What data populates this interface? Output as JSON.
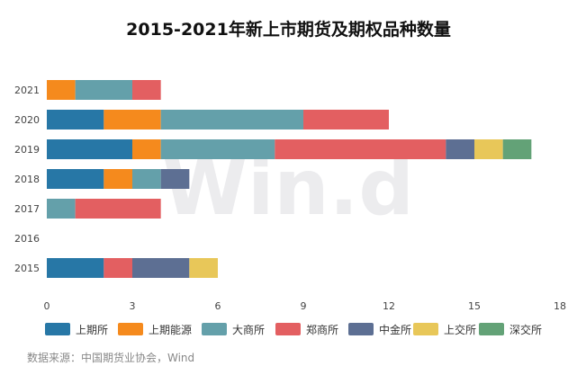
{
  "chart_data": {
    "type": "bar",
    "orientation": "horizontal",
    "stacked": true,
    "title": "2015-2021年新上市期货及期权品种数量",
    "categories": [
      "2021",
      "2020",
      "2019",
      "2018",
      "2017",
      "2016",
      "2015"
    ],
    "x_ticks": [
      "0",
      "3",
      "6",
      "9",
      "12",
      "15",
      "18"
    ],
    "xlim": [
      0,
      18
    ],
    "grid": false,
    "legend_position": "bottom",
    "series": [
      {
        "name": "上期所",
        "color": "#2777a6",
        "values": [
          0,
          2,
          3,
          2,
          0,
          0,
          2
        ]
      },
      {
        "name": "上期能源",
        "color": "#f58a1d",
        "values": [
          1,
          2,
          1,
          1,
          0,
          0,
          0
        ]
      },
      {
        "name": "大商所",
        "color": "#64a0aa",
        "values": [
          2,
          5,
          4,
          1,
          1,
          0,
          0
        ]
      },
      {
        "name": "郑商所",
        "color": "#e35f61",
        "values": [
          1,
          3,
          6,
          0,
          3,
          0,
          1
        ]
      },
      {
        "name": "中金所",
        "color": "#5d6f93",
        "values": [
          0,
          0,
          1,
          1,
          0,
          0,
          2
        ]
      },
      {
        "name": "上交所",
        "color": "#e8c759",
        "values": [
          0,
          0,
          1,
          0,
          0,
          0,
          1
        ]
      },
      {
        "name": "深交所",
        "color": "#63a277",
        "values": [
          0,
          0,
          1,
          0,
          0,
          0,
          0
        ]
      }
    ],
    "watermark": "Win.d"
  },
  "source_note": "数据来源：中国期货业协会，Wind"
}
